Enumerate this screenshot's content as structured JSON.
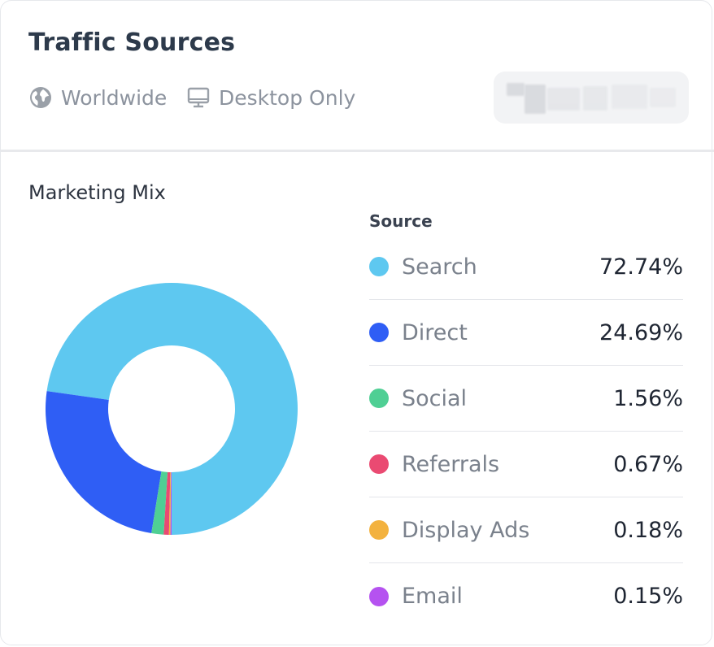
{
  "card": {
    "title": "Traffic Sources",
    "region_label": "Worldwide",
    "device_label": "Desktop Only",
    "region_icon": "globe-icon",
    "device_icon": "desktop-icon"
  },
  "chart_data": {
    "type": "pie",
    "style": "donut",
    "title": "Marketing Mix",
    "legend_header": "Source",
    "legend_placement": "right",
    "categories": [
      "Search",
      "Direct",
      "Social",
      "Referrals",
      "Display Ads",
      "Email"
    ],
    "values": [
      72.74,
      24.69,
      1.56,
      0.67,
      0.18,
      0.15
    ],
    "value_labels": [
      "72.74%",
      "24.69%",
      "1.56%",
      "0.67%",
      "0.18%",
      "0.15%"
    ],
    "colors": [
      "#5ec8f0",
      "#2f5ef5",
      "#4fcf94",
      "#ea4a72",
      "#f3b23f",
      "#b552f0"
    ]
  }
}
